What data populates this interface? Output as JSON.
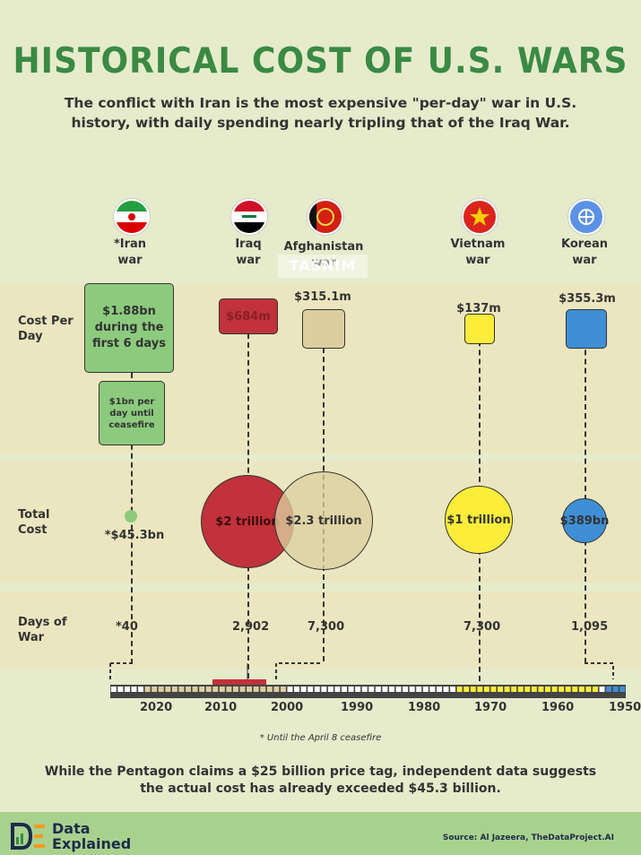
{
  "title": "HISTORICAL COST OF U.S. WARS",
  "subtitle": "The conflict with Iran is the most expensive \"per-day\" war in U.S. history, with daily spending nearly tripling that of the Iraq War.",
  "row_labels": {
    "cost_per_day": "Cost Per Day",
    "total_cost": "Total Cost",
    "days_of_war": "Days of War"
  },
  "wars": [
    {
      "id": "iran",
      "name_line1": "*Iran",
      "name_line2": "war",
      "color": "#8ccb7e",
      "flag": "iran-flag-icon"
    },
    {
      "id": "iraq",
      "name_line1": "Iraq",
      "name_line2": "war",
      "color": "#c1323a",
      "flag": "iraq-flag-icon"
    },
    {
      "id": "afghanistan",
      "name_line1": "Afghanistan",
      "name_line2": "war",
      "color": "#dccf9f",
      "flag": "afghanistan-flag-icon"
    },
    {
      "id": "vietnam",
      "name_line1": "Vietnam",
      "name_line2": "war",
      "color": "#fbed3a",
      "flag": "vietnam-flag-icon"
    },
    {
      "id": "korea",
      "name_line1": "Korean",
      "name_line2": "war",
      "color": "#3f8fd6",
      "flag": "un-flag-icon"
    }
  ],
  "chart_data": {
    "type": "bubble-timeline",
    "title": "HISTORICAL COST OF U.S. WARS",
    "cost_per_day": [
      {
        "war": "Iran",
        "label": "$1.88bn during the first 6 days",
        "value_usd": 1880000000
      },
      {
        "war": "Iran",
        "label": "$1bn per day until ceasefire",
        "value_usd": 1000000000
      },
      {
        "war": "Iraq",
        "label": "$684m",
        "value_usd": 684000000
      },
      {
        "war": "Afghanistan",
        "label": "$315.1m",
        "value_usd": 315100000
      },
      {
        "war": "Vietnam",
        "label": "$137m",
        "value_usd": 137000000
      },
      {
        "war": "Korean",
        "label": "$355.3m",
        "value_usd": 355300000
      }
    ],
    "total_cost": [
      {
        "war": "Iran",
        "label": "*$45.3bn",
        "value_usd": 45300000000
      },
      {
        "war": "Iraq",
        "label": "$2 trillion",
        "value_usd": 2000000000000
      },
      {
        "war": "Afghanistan",
        "label": "$2.3 trillion",
        "value_usd": 2300000000000
      },
      {
        "war": "Vietnam",
        "label": "$1 trillion",
        "value_usd": 1000000000000
      },
      {
        "war": "Korean",
        "label": "$389bn",
        "value_usd": 389000000000
      }
    ],
    "days_of_war": [
      {
        "war": "Iran",
        "label": "*40",
        "value": 40
      },
      {
        "war": "Iraq",
        "label": "2,902",
        "value": 2902
      },
      {
        "war": "Afghanistan",
        "label": "7,300",
        "value": 7300
      },
      {
        "war": "Vietnam",
        "label": "7,300",
        "value": 7300
      },
      {
        "war": "Korean",
        "label": "1,095",
        "value": 1095
      }
    ],
    "timeline": {
      "tick_labels": [
        "2020",
        "2010",
        "2000",
        "1990",
        "1980",
        "1970",
        "1960",
        "1950"
      ],
      "range": [
        2026,
        1950
      ],
      "periods": [
        {
          "war": "Iran",
          "start": 2026,
          "end": 2026
        },
        {
          "war": "Iraq",
          "start": 2003,
          "end": 2011
        },
        {
          "war": "Afghanistan",
          "start": 2001,
          "end": 2021
        },
        {
          "war": "Vietnam",
          "start": 1955,
          "end": 1975
        },
        {
          "war": "Korean",
          "start": 1950,
          "end": 1953
        }
      ]
    }
  },
  "footnote": "* Until the April 8 ceasefire",
  "bottom_text": "While the Pentagon claims a $25 billion price tag, independent data suggests the actual cost has already exceeded $45.3 billion.",
  "footer": {
    "brand_line1": "Data",
    "brand_line2": "Explained",
    "source": "Source: Al Jazeera, TheDataProject.AI",
    "logo": "data-explained-logo-icon"
  },
  "watermark": "TASNIM"
}
